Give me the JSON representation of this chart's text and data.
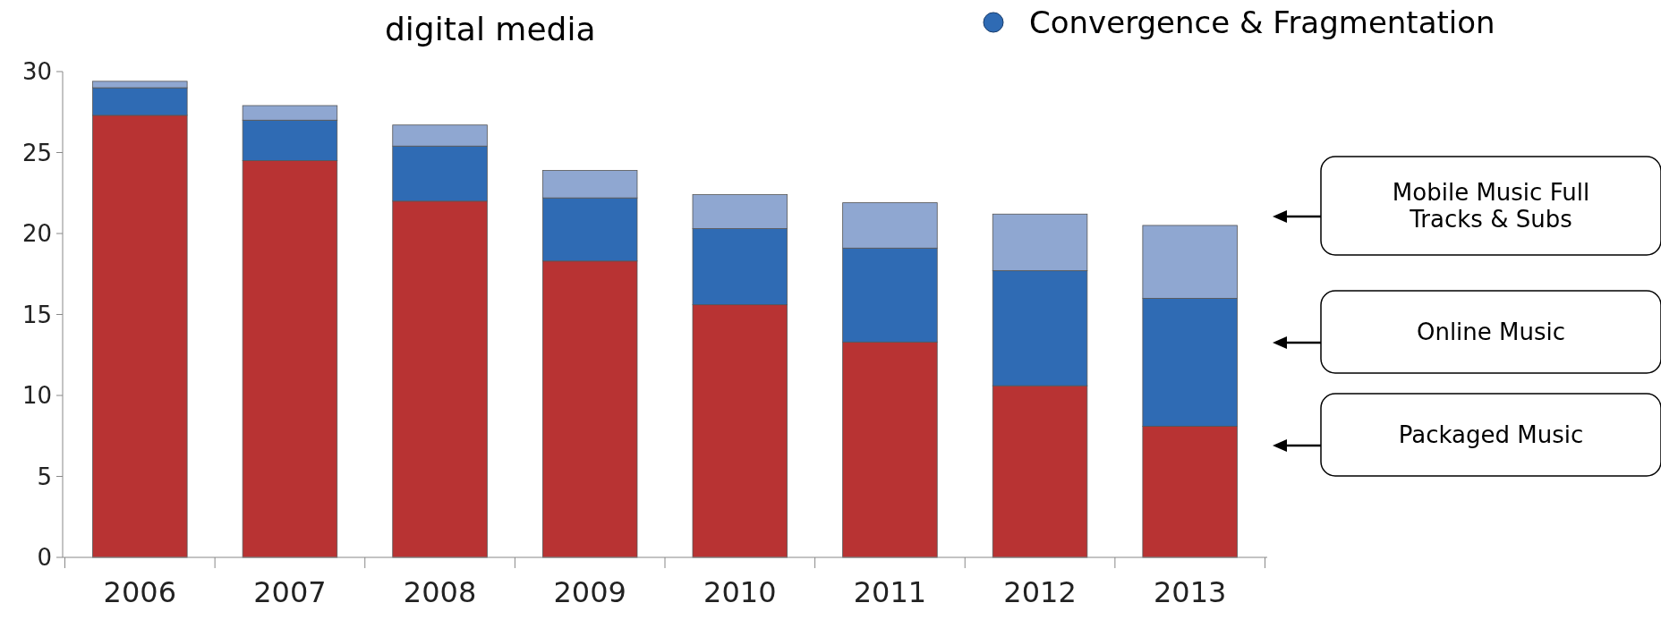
{
  "chart_data": {
    "type": "bar",
    "stacked": true,
    "categories": [
      "2006",
      "2007",
      "2008",
      "2009",
      "2010",
      "2011",
      "2012",
      "2013"
    ],
    "series": [
      {
        "name": "Packaged Music",
        "color": "#b83333",
        "values": [
          27.3,
          24.5,
          22.0,
          18.3,
          15.6,
          13.3,
          10.6,
          8.1
        ]
      },
      {
        "name": "Online Music",
        "color": "#2f6bb4",
        "values": [
          1.7,
          2.5,
          3.4,
          3.9,
          4.7,
          5.8,
          7.1,
          7.9
        ]
      },
      {
        "name": "Mobile Music Full Tracks & Subs",
        "color": "#8fa7d1",
        "values": [
          0.4,
          0.9,
          1.3,
          1.7,
          2.1,
          2.8,
          3.5,
          4.5
        ]
      }
    ],
    "ylim": [
      0,
      30
    ],
    "yticks": [
      0,
      5,
      10,
      15,
      20,
      25,
      30
    ],
    "grid": false,
    "legend": "right",
    "annotations": [
      "digital media",
      "Convergence & Fragmentation"
    ]
  }
}
